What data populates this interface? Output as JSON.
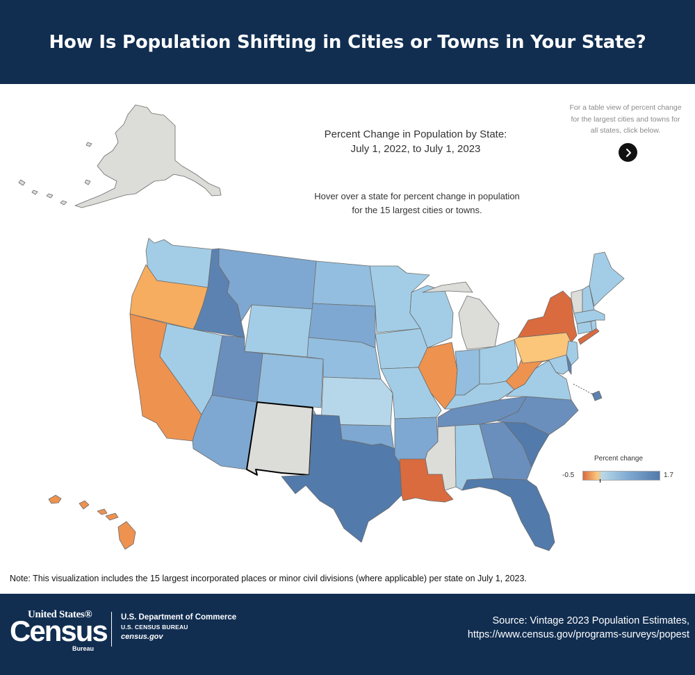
{
  "header": {
    "title": "How Is Population Shifting in Cities or Towns in Your State?"
  },
  "map": {
    "title_line1": "Percent Change in Population by State:",
    "title_line2": "July 1, 2022, to July 1, 2023",
    "hover_line1": "Hover over a state for percent change in population",
    "hover_line2": "for the 15 largest cities or towns.",
    "table_note_line1": "For a table view of percent change",
    "table_note_line2": "for the largest cities and towns for",
    "table_note_line3": "all states, click below.",
    "table_button_icon": "chevron-right-icon",
    "highlighted_state": "New Mexico",
    "colors": {
      "gray": "#dcdcd8",
      "orange_dark": "#d96b3f",
      "orange_mid": "#ee9250",
      "orange_light": "#f6ad5f",
      "peach": "#fbc57a",
      "blue_pale": "#b6d7e9",
      "blue_light": "#a3cde6",
      "blue_lm": "#93bedf",
      "blue_mid": "#7ea8d1",
      "blue_md": "#6a8fbd",
      "blue_dark": "#5c82b1",
      "blue_darkest": "#527aaa"
    }
  },
  "legend": {
    "title": "Percent change",
    "min": "-0.5",
    "max": "1.7",
    "min_value": -0.5,
    "max_value": 1.7,
    "midpoint": 0
  },
  "note": "Note: This visualization includes the 15 largest incorporated places or minor civil divisions (where applicable) per state on July 1, 2023.",
  "footer": {
    "logo_line1": "United States®",
    "logo_word": "Census",
    "logo_bureau": "Bureau",
    "dept_line1": "U.S. Department of Commerce",
    "dept_line2": "U.S. CENSUS BUREAU",
    "dept_line3": "census.gov",
    "source_line1": "Source: Vintage 2023 Population Estimates,",
    "source_line2": "https://www.census.gov/programs-surveys/popest"
  }
}
